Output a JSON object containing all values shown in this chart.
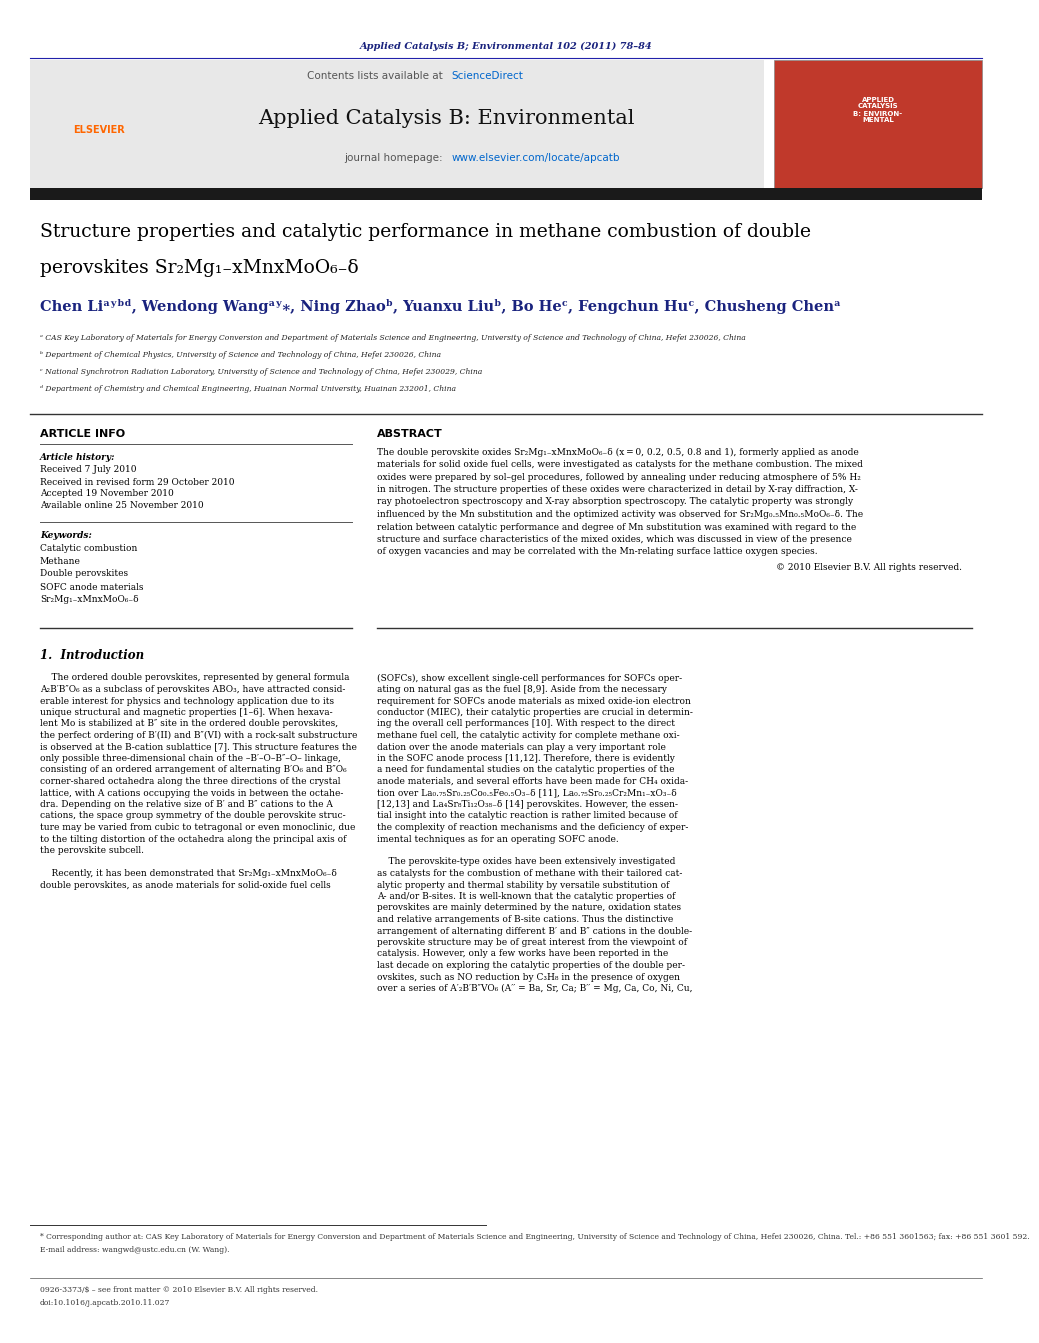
{
  "page_width": 9.92,
  "page_height": 13.23,
  "background_color": "#ffffff",
  "header_journal_text": "Applied Catalysis B; Environmental 102 (2011) 78–84",
  "header_journal_color": "#1a237e",
  "journal_name": "Applied Catalysis B: Environmental",
  "journal_homepage": "journal homepage: www.elsevier.com/locate/apcatb",
  "contents_lists": "Contents lists available at ScienceDirect",
  "sciencedirect_color": "#0066cc",
  "header_bg_color": "#e8e8e8",
  "dark_bar_color": "#1a1a1a",
  "title_line1": "Structure properties and catalytic performance in methane combustion of double",
  "title_line2": "perovskites Sr₂Mg₁₋xMnxMoO₆₋δ",
  "title_color": "#000000",
  "title_fontsize": 13.5,
  "authors": "Chen Liᵃʸᵇᵈ, Wendong Wangᵃʸ⁎, Ning Zhaoᵇ, Yuanxu Liuᵇ, Bo Heᶜ, Fengchun Huᶜ, Chusheng Chenᵃ",
  "authors_color": "#1a237e",
  "affil_a": "ᵃ CAS Key Laboratory of Materials for Energy Conversion and Department of Materials Science and Engineering, University of Science and Technology of China, Hefei 230026, China",
  "affil_b": "ᵇ Department of Chemical Physics, University of Science and Technology of China, Hefei 230026, China",
  "affil_c": "ᶜ National Synchrotron Radiation Laboratory, University of Science and Technology of China, Hefei 230029, China",
  "affil_d": "ᵈ Department of Chemistry and Chemical Engineering, Huainan Normal University, Huainan 232001, China",
  "article_info_header": "ARTICLE INFO",
  "abstract_header": "ABSTRACT",
  "article_history_label": "Article history:",
  "received": "Received 7 July 2010",
  "revised": "Received in revised form 29 October 2010",
  "accepted": "Accepted 19 November 2010",
  "available": "Available online 25 November 2010",
  "keywords_label": "Keywords:",
  "keywords": [
    "Catalytic combustion",
    "Methane",
    "Double perovskites",
    "SOFC anode materials",
    "Sr₂Mg₁₋xMnxMoO₆₋δ"
  ],
  "copyright": "© 2010 Elsevier B.V. All rights reserved.",
  "intro_header": "1.  Introduction",
  "footnote1": "* Corresponding author at: CAS Key Laboratory of Materials for Energy Conversion and Department of Materials Science and Engineering, University of Science and Technology of China, Hefei 230026, China. Tel.: +86 551 3601563; fax: +86 551 3601 592.",
  "footnote2": "E-mail address: wangwd@ustc.edu.cn (W. Wang).",
  "footer1": "0926-3373/$ – see front matter © 2010 Elsevier B.V. All rights reserved.",
  "footer2": "doi:10.1016/j.apcatb.2010.11.027",
  "elsevier_color": "#ff6600",
  "text_color": "#000000",
  "small_text_color": "#333333",
  "abstract_lines": [
    "The double perovskite oxides Sr₂Mg₁₋xMnxMoO₆₋δ (x = 0, 0.2, 0.5, 0.8 and 1), formerly applied as anode",
    "materials for solid oxide fuel cells, were investigated as catalysts for the methane combustion. The mixed",
    "oxides were prepared by sol–gel procedures, followed by annealing under reducing atmosphere of 5% H₂",
    "in nitrogen. The structure properties of these oxides were characterized in detail by X-ray diffraction, X-",
    "ray photoelectron spectroscopy and X-ray absorption spectroscopy. The catalytic property was strongly",
    "influenced by the Mn substitution and the optimized activity was observed for Sr₂Mg₀.₅Mn₀.₅MoO₆₋δ. The",
    "relation between catalytic performance and degree of Mn substitution was examined with regard to the",
    "structure and surface characteristics of the mixed oxides, which was discussed in view of the presence",
    "of oxygen vacancies and may be correlated with the Mn-relating surface lattice oxygen species."
  ],
  "intro_col1_lines": [
    "    The ordered double perovskites, represented by general formula",
    "A₂B′B″O₆ as a subclass of perovskites ABO₃, have attracted consid-",
    "erable interest for physics and technology application due to its",
    "unique structural and magnetic properties [1–6]. When hexava-",
    "lent Mo is stabilized at B″ site in the ordered double perovskites,",
    "the perfect ordering of B′(II) and B″(VI) with a rock-salt substructure",
    "is observed at the B-cation sublattice [7]. This structure features the",
    "only possible three-dimensional chain of the –B′–O–B″–O– linkage,",
    "consisting of an ordered arrangement of alternating B′O₆ and B″O₆",
    "corner-shared octahedra along the three directions of the crystal",
    "lattice, with A cations occupying the voids in between the octahe-",
    "dra. Depending on the relative size of B′ and B″ cations to the A",
    "cations, the space group symmetry of the double perovskite struc-",
    "ture may be varied from cubic to tetragonal or even monoclinic, due",
    "to the tilting distortion of the octahedra along the principal axis of",
    "the perovskite subcell.",
    "",
    "    Recently, it has been demonstrated that Sr₂Mg₁₋xMnxMoO₆₋δ",
    "double perovskites, as anode materials for solid-oxide fuel cells"
  ],
  "intro_col2_lines": [
    "(SOFCs), show excellent single-cell performances for SOFCs oper-",
    "ating on natural gas as the fuel [8,9]. Aside from the necessary",
    "requirement for SOFCs anode materials as mixed oxide-ion electron",
    "conductor (MIEC), their catalytic properties are crucial in determin-",
    "ing the overall cell performances [10]. With respect to the direct",
    "methane fuel cell, the catalytic activity for complete methane oxi-",
    "dation over the anode materials can play a very important role",
    "in the SOFC anode process [11,12]. Therefore, there is evidently",
    "a need for fundamental studies on the catalytic properties of the",
    "anode materials, and several efforts have been made for CH₄ oxida-",
    "tion over La₀.₇₅Sr₀.₂₅Co₀.₅Fe₀.₅O₃₋δ [11], La₀.₇₅Sr₀.₂₅Cr₂Mn₁₋xO₃₋δ",
    "[12,13] and La₄Sr₈Ti₁₂O₃₈₋δ [14] perovskites. However, the essen-",
    "tial insight into the catalytic reaction is rather limited because of",
    "the complexity of reaction mechanisms and the deficiency of exper-",
    "imental techniques as for an operating SOFC anode.",
    "",
    "    The perovskite-type oxides have been extensively investigated",
    "as catalysts for the combustion of methane with their tailored cat-",
    "alytic property and thermal stability by versatile substitution of",
    "A- and/or B-sites. It is well-known that the catalytic properties of",
    "perovskites are mainly determined by the nature, oxidation states",
    "and relative arrangements of B-site cations. Thus the distinctive",
    "arrangement of alternating different B′ and B″ cations in the double-",
    "perovskite structure may be of great interest from the viewpoint of",
    "catalysis. However, only a few works have been reported in the",
    "last decade on exploring the catalytic properties of the double per-",
    "ovskites, such as NO reduction by C₃H₈ in the presence of oxygen",
    "over a series of A′₂B′B″VO₆ (A′′ = Ba, Sr, Ca; B′′ = Mg, Ca, Co, Ni, Cu,"
  ]
}
